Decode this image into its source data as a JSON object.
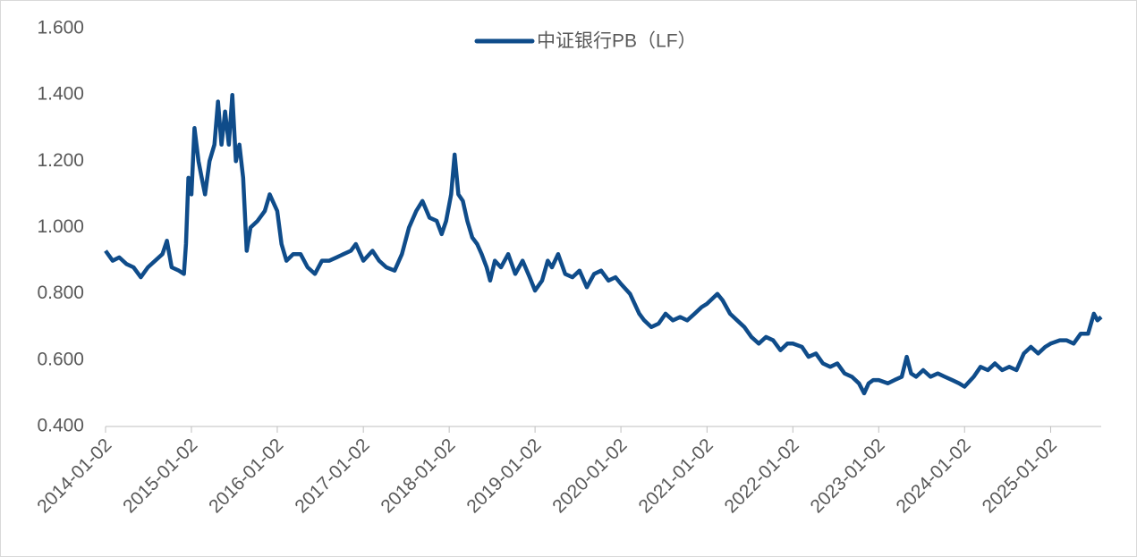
{
  "chart_data": {
    "type": "line",
    "x": [
      "2014-01-02",
      "2014-02-01",
      "2014-03-01",
      "2014-04-01",
      "2014-05-01",
      "2014-06-01",
      "2014-07-01",
      "2014-08-01",
      "2014-09-01",
      "2014-09-20",
      "2014-10-10",
      "2014-11-10",
      "2014-12-01",
      "2014-12-10",
      "2014-12-20",
      "2015-01-02",
      "2015-01-15",
      "2015-02-01",
      "2015-02-15",
      "2015-03-01",
      "2015-03-20",
      "2015-04-10",
      "2015-04-25",
      "2015-05-10",
      "2015-05-25",
      "2015-06-10",
      "2015-06-25",
      "2015-07-10",
      "2015-07-25",
      "2015-08-10",
      "2015-08-25",
      "2015-09-10",
      "2015-10-10",
      "2015-11-10",
      "2015-12-01",
      "2016-01-02",
      "2016-01-20",
      "2016-02-10",
      "2016-03-10",
      "2016-04-10",
      "2016-05-10",
      "2016-06-10",
      "2016-07-10",
      "2016-08-10",
      "2016-09-10",
      "2016-10-10",
      "2016-11-10",
      "2016-12-01",
      "2017-01-02",
      "2017-02-10",
      "2017-03-10",
      "2017-04-10",
      "2017-05-15",
      "2017-06-15",
      "2017-07-15",
      "2017-08-15",
      "2017-09-10",
      "2017-10-10",
      "2017-11-10",
      "2017-12-01",
      "2017-12-20",
      "2018-01-10",
      "2018-01-25",
      "2018-02-10",
      "2018-03-01",
      "2018-03-20",
      "2018-04-10",
      "2018-05-01",
      "2018-05-20",
      "2018-06-10",
      "2018-06-25",
      "2018-07-15",
      "2018-08-10",
      "2018-09-10",
      "2018-10-10",
      "2018-11-10",
      "2018-12-10",
      "2019-01-02",
      "2019-02-01",
      "2019-02-25",
      "2019-03-15",
      "2019-04-10",
      "2019-05-10",
      "2019-06-10",
      "2019-07-10",
      "2019-08-10",
      "2019-09-10",
      "2019-10-10",
      "2019-11-10",
      "2019-12-10",
      "2020-01-02",
      "2020-02-10",
      "2020-03-20",
      "2020-04-10",
      "2020-05-10",
      "2020-06-10",
      "2020-07-10",
      "2020-08-10",
      "2020-09-10",
      "2020-10-10",
      "2020-11-10",
      "2020-12-10",
      "2021-01-02",
      "2021-02-15",
      "2021-03-10",
      "2021-04-10",
      "2021-05-10",
      "2021-06-10",
      "2021-07-10",
      "2021-08-10",
      "2021-09-10",
      "2021-10-10",
      "2021-11-10",
      "2021-12-10",
      "2022-01-02",
      "2022-02-10",
      "2022-03-10",
      "2022-04-10",
      "2022-05-10",
      "2022-06-10",
      "2022-07-10",
      "2022-08-10",
      "2022-09-10",
      "2022-10-10",
      "2022-11-01",
      "2022-11-20",
      "2022-12-10",
      "2023-01-02",
      "2023-02-10",
      "2023-03-10",
      "2023-04-10",
      "2023-05-01",
      "2023-05-20",
      "2023-06-10",
      "2023-07-10",
      "2023-08-10",
      "2023-09-10",
      "2023-10-10",
      "2023-11-10",
      "2023-12-10",
      "2024-01-02",
      "2024-02-10",
      "2024-03-10",
      "2024-04-10",
      "2024-05-10",
      "2024-06-10",
      "2024-07-10",
      "2024-08-10",
      "2024-09-10",
      "2024-10-10",
      "2024-11-10",
      "2024-12-10",
      "2025-01-02",
      "2025-02-10",
      "2025-03-10",
      "2025-04-10",
      "2025-05-10",
      "2025-06-10",
      "2025-07-05",
      "2025-07-20",
      "2025-08-05"
    ],
    "series": [
      {
        "name": "中证银行PB（LF）",
        "color": "#0f4c8a",
        "values": [
          0.93,
          0.9,
          0.91,
          0.89,
          0.88,
          0.85,
          0.88,
          0.9,
          0.92,
          0.96,
          0.88,
          0.87,
          0.86,
          0.95,
          1.15,
          1.1,
          1.3,
          1.2,
          1.15,
          1.1,
          1.2,
          1.25,
          1.38,
          1.25,
          1.35,
          1.25,
          1.4,
          1.2,
          1.25,
          1.15,
          0.93,
          1.0,
          1.02,
          1.05,
          1.1,
          1.05,
          0.95,
          0.9,
          0.92,
          0.92,
          0.88,
          0.86,
          0.9,
          0.9,
          0.91,
          0.92,
          0.93,
          0.95,
          0.9,
          0.93,
          0.9,
          0.88,
          0.87,
          0.92,
          1.0,
          1.05,
          1.08,
          1.03,
          1.02,
          0.98,
          1.02,
          1.1,
          1.22,
          1.1,
          1.08,
          1.02,
          0.97,
          0.95,
          0.92,
          0.88,
          0.84,
          0.9,
          0.88,
          0.92,
          0.86,
          0.9,
          0.85,
          0.81,
          0.84,
          0.9,
          0.88,
          0.92,
          0.86,
          0.85,
          0.87,
          0.82,
          0.86,
          0.87,
          0.84,
          0.85,
          0.83,
          0.8,
          0.74,
          0.72,
          0.7,
          0.71,
          0.74,
          0.72,
          0.73,
          0.72,
          0.74,
          0.76,
          0.77,
          0.8,
          0.78,
          0.74,
          0.72,
          0.7,
          0.67,
          0.65,
          0.67,
          0.66,
          0.63,
          0.65,
          0.65,
          0.64,
          0.61,
          0.62,
          0.59,
          0.58,
          0.59,
          0.56,
          0.55,
          0.53,
          0.5,
          0.53,
          0.54,
          0.54,
          0.53,
          0.54,
          0.55,
          0.61,
          0.56,
          0.55,
          0.57,
          0.55,
          0.56,
          0.55,
          0.54,
          0.53,
          0.52,
          0.55,
          0.58,
          0.57,
          0.59,
          0.57,
          0.58,
          0.57,
          0.62,
          0.64,
          0.62,
          0.64,
          0.65,
          0.66,
          0.66,
          0.65,
          0.68,
          0.68,
          0.74,
          0.72,
          0.73
        ]
      }
    ],
    "xlim": [
      "2014-01-02",
      "2025-08-05"
    ],
    "xticks": [
      "2014-01-02",
      "2015-01-02",
      "2016-01-02",
      "2017-01-02",
      "2018-01-02",
      "2019-01-02",
      "2020-01-02",
      "2021-01-02",
      "2022-01-02",
      "2023-01-02",
      "2024-01-02",
      "2025-01-02"
    ],
    "ylim": [
      0.4,
      1.6
    ],
    "yticks": [
      {
        "value": 0.4,
        "label": "0.400"
      },
      {
        "value": 0.6,
        "label": "0.600"
      },
      {
        "value": 0.8,
        "label": "0.800"
      },
      {
        "value": 1.0,
        "label": "1.000"
      },
      {
        "value": 1.2,
        "label": "1.200"
      },
      {
        "value": 1.4,
        "label": "1.400"
      },
      {
        "value": 1.6,
        "label": "1.600"
      }
    ],
    "legend": "top"
  }
}
